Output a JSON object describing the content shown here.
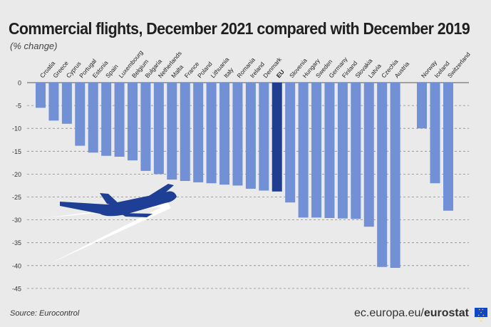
{
  "title": "Commercial flights, December 2021 compared with December 2019",
  "subtitle": "(% change)",
  "source": "Source: Eurocontrol",
  "brand": {
    "domain": "ec.europa.eu/",
    "name": "eurostat"
  },
  "colors": {
    "bar": "#7290d6",
    "highlight": "#1f3e8f",
    "plane": "#1e3f95",
    "grid": "#8a8a8a"
  },
  "chart_data": {
    "type": "bar",
    "categories": [
      "Croatia",
      "Greece",
      "Cyprus",
      "Portugal",
      "Estonia",
      "Spain",
      "Luxembourg",
      "Belgium",
      "Bulgaria",
      "Netherlands",
      "Malta",
      "France",
      "Poland",
      "Lithuania",
      "Italy",
      "Romania",
      "Ireland",
      "Denmark",
      "EU",
      "Slovenia",
      "Hungary",
      "Sweden",
      "Germany",
      "Finland",
      "Slovakia",
      "Latvia",
      "Czechia",
      "Austria",
      "Norway",
      "Iceland",
      "Switzerland"
    ],
    "values": [
      -5.5,
      -8.3,
      -9.0,
      -13.8,
      -15.3,
      -16.0,
      -16.2,
      -17.0,
      -19.3,
      -20.0,
      -21.2,
      -21.5,
      -21.8,
      -22.0,
      -22.3,
      -22.5,
      -23.2,
      -23.6,
      -23.8,
      -26.2,
      -29.5,
      -29.5,
      -29.6,
      -29.7,
      -29.8,
      -31.5,
      -40.3,
      -40.5,
      -10.0,
      -22.0,
      -28.0
    ],
    "highlight": "EU",
    "y_ticks": [
      0,
      -5,
      -10,
      -15,
      -20,
      -25,
      -30,
      -35,
      -40,
      -45
    ],
    "ylim": [
      -46,
      0
    ],
    "grid": true,
    "xlabel": "",
    "ylabel": ""
  }
}
